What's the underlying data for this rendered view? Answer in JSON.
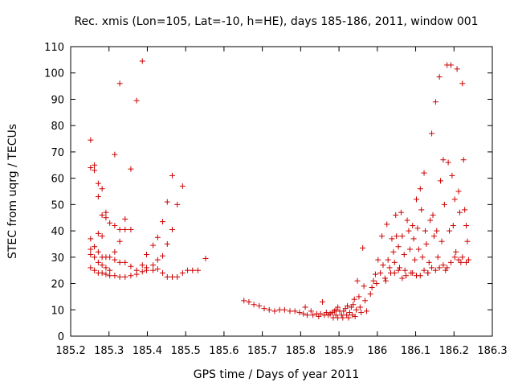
{
  "chart_data": {
    "type": "scatter",
    "title": "Rec. xmis (Lon=105, Lat=-10, h=HE), days 185-186, 2011, window 001",
    "xlabel": "GPS time / Days of year 2011",
    "ylabel": "STEC from uqrg / TECUs",
    "xlim": [
      185.2,
      186.3
    ],
    "ylim": [
      0,
      110
    ],
    "xticks": [
      "185.2",
      "185.3",
      "185.4",
      "185.5",
      "185.6",
      "185.7",
      "185.8",
      "185.9",
      "186",
      "186.1",
      "186.2",
      "186.3"
    ],
    "yticks": [
      "0",
      "10",
      "20",
      "30",
      "40",
      "50",
      "60",
      "70",
      "80",
      "90",
      "100",
      "110"
    ],
    "grid": false,
    "marker": "+",
    "color": "#cc0000",
    "points": [
      [
        185.252,
        74.5
      ],
      [
        185.252,
        64
      ],
      [
        185.252,
        37
      ],
      [
        185.252,
        33
      ],
      [
        185.252,
        31
      ],
      [
        185.252,
        26
      ],
      [
        185.262,
        65
      ],
      [
        185.262,
        63
      ],
      [
        185.262,
        34
      ],
      [
        185.262,
        30
      ],
      [
        185.262,
        25
      ],
      [
        185.272,
        58
      ],
      [
        185.272,
        53
      ],
      [
        185.272,
        39
      ],
      [
        185.272,
        32
      ],
      [
        185.272,
        28
      ],
      [
        185.272,
        24
      ],
      [
        185.282,
        56
      ],
      [
        185.282,
        46
      ],
      [
        185.282,
        38
      ],
      [
        185.282,
        30
      ],
      [
        185.282,
        27
      ],
      [
        185.282,
        24
      ],
      [
        185.292,
        47
      ],
      [
        185.292,
        45
      ],
      [
        185.292,
        30
      ],
      [
        185.292,
        26
      ],
      [
        185.292,
        23.5
      ],
      [
        185.302,
        43
      ],
      [
        185.302,
        30
      ],
      [
        185.302,
        25
      ],
      [
        185.302,
        23
      ],
      [
        185.315,
        69
      ],
      [
        185.315,
        42
      ],
      [
        185.315,
        32
      ],
      [
        185.315,
        29
      ],
      [
        185.315,
        23
      ],
      [
        185.328,
        96
      ],
      [
        185.328,
        40.5
      ],
      [
        185.328,
        36
      ],
      [
        185.328,
        28
      ],
      [
        185.328,
        22.5
      ],
      [
        185.342,
        44.5
      ],
      [
        185.342,
        40.5
      ],
      [
        185.342,
        28
      ],
      [
        185.342,
        22.5
      ],
      [
        185.357,
        63.5
      ],
      [
        185.357,
        40.5
      ],
      [
        185.357,
        26.5
      ],
      [
        185.357,
        23
      ],
      [
        185.372,
        89.5
      ],
      [
        185.372,
        25
      ],
      [
        185.372,
        23.5
      ],
      [
        185.387,
        104.5
      ],
      [
        185.387,
        27
      ],
      [
        185.387,
        24.5
      ],
      [
        185.398,
        31
      ],
      [
        185.398,
        26
      ],
      [
        185.398,
        25
      ],
      [
        185.415,
        34.5
      ],
      [
        185.415,
        27
      ],
      [
        185.415,
        25
      ],
      [
        185.427,
        37.5
      ],
      [
        185.427,
        29
      ],
      [
        185.427,
        25.5
      ],
      [
        185.44,
        43.5
      ],
      [
        185.44,
        30.5
      ],
      [
        185.44,
        24
      ],
      [
        185.452,
        51
      ],
      [
        185.452,
        35
      ],
      [
        185.452,
        22.5
      ],
      [
        185.465,
        61
      ],
      [
        185.465,
        40.5
      ],
      [
        185.465,
        22.5
      ],
      [
        185.478,
        50
      ],
      [
        185.478,
        22.5
      ],
      [
        185.492,
        57
      ],
      [
        185.492,
        24
      ],
      [
        185.505,
        25
      ],
      [
        185.518,
        25
      ],
      [
        185.532,
        25
      ],
      [
        185.552,
        29.5
      ],
      [
        185.652,
        13.5
      ],
      [
        185.665,
        13
      ],
      [
        185.678,
        12
      ],
      [
        185.692,
        11.5
      ],
      [
        185.705,
        10.5
      ],
      [
        185.718,
        10
      ],
      [
        185.732,
        9.5
      ],
      [
        185.745,
        10
      ],
      [
        185.758,
        10
      ],
      [
        185.772,
        9.5
      ],
      [
        185.785,
        9.5
      ],
      [
        185.797,
        9
      ],
      [
        185.807,
        8.5
      ],
      [
        185.812,
        11
      ],
      [
        185.817,
        8
      ],
      [
        185.827,
        9.5
      ],
      [
        185.832,
        8
      ],
      [
        185.842,
        8.5
      ],
      [
        185.847,
        7.5
      ],
      [
        185.852,
        8.5
      ],
      [
        185.857,
        13
      ],
      [
        185.862,
        8
      ],
      [
        185.867,
        9
      ],
      [
        185.872,
        8
      ],
      [
        185.877,
        8.5
      ],
      [
        185.882,
        9
      ],
      [
        185.885,
        7
      ],
      [
        185.888,
        9.5
      ],
      [
        185.892,
        10
      ],
      [
        185.892,
        8
      ],
      [
        185.897,
        11
      ],
      [
        185.897,
        7
      ],
      [
        185.902,
        9.5
      ],
      [
        185.907,
        8
      ],
      [
        185.91,
        7
      ],
      [
        185.912,
        9.5
      ],
      [
        185.917,
        10.5
      ],
      [
        185.92,
        8
      ],
      [
        185.922,
        11.5
      ],
      [
        185.925,
        7
      ],
      [
        185.928,
        9
      ],
      [
        185.932,
        11
      ],
      [
        185.935,
        8
      ],
      [
        185.937,
        12
      ],
      [
        185.94,
        14
      ],
      [
        185.942,
        7.5
      ],
      [
        185.945,
        10
      ],
      [
        185.948,
        21
      ],
      [
        185.952,
        15
      ],
      [
        185.955,
        11
      ],
      [
        185.958,
        9
      ],
      [
        185.962,
        33.5
      ],
      [
        185.965,
        19
      ],
      [
        185.968,
        13.5
      ],
      [
        185.972,
        9.5
      ],
      [
        185.982,
        16
      ],
      [
        185.986,
        18.5
      ],
      [
        185.99,
        21
      ],
      [
        185.995,
        23.5
      ],
      [
        185.998,
        20
      ],
      [
        186.002,
        29
      ],
      [
        186.008,
        24
      ],
      [
        186.012,
        38
      ],
      [
        186.015,
        27
      ],
      [
        186.02,
        22
      ],
      [
        186.025,
        42.5
      ],
      [
        186.028,
        29
      ],
      [
        186.032,
        26
      ],
      [
        186.035,
        24
      ],
      [
        186.038,
        37
      ],
      [
        186.042,
        32
      ],
      [
        186.045,
        28
      ],
      [
        186.048,
        46
      ],
      [
        186.05,
        38
      ],
      [
        186.055,
        34
      ],
      [
        186.058,
        26
      ],
      [
        186.062,
        47
      ],
      [
        186.065,
        38
      ],
      [
        186.07,
        31
      ],
      [
        186.072,
        25
      ],
      [
        186.078,
        44
      ],
      [
        186.082,
        40
      ],
      [
        186.085,
        33
      ],
      [
        186.088,
        24
      ],
      [
        186.092,
        42
      ],
      [
        186.095,
        37
      ],
      [
        186.098,
        29
      ],
      [
        186.102,
        52
      ],
      [
        186.105,
        41
      ],
      [
        186.108,
        33
      ],
      [
        186.112,
        56
      ],
      [
        186.115,
        48
      ],
      [
        186.118,
        30
      ],
      [
        186.122,
        62
      ],
      [
        186.125,
        40
      ],
      [
        186.128,
        35
      ],
      [
        186.132,
        24
      ],
      [
        186.135,
        28
      ],
      [
        186.138,
        44
      ],
      [
        186.142,
        77
      ],
      [
        186.145,
        46
      ],
      [
        186.148,
        38
      ],
      [
        186.152,
        89
      ],
      [
        186.155,
        40
      ],
      [
        186.158,
        30
      ],
      [
        186.162,
        98.5
      ],
      [
        186.165,
        59
      ],
      [
        186.168,
        36
      ],
      [
        186.172,
        67
      ],
      [
        186.175,
        50
      ],
      [
        186.178,
        25
      ],
      [
        186.182,
        103
      ],
      [
        186.185,
        66
      ],
      [
        186.188,
        40
      ],
      [
        186.192,
        103
      ],
      [
        186.195,
        61
      ],
      [
        186.198,
        42
      ],
      [
        186.202,
        52
      ],
      [
        186.205,
        32
      ],
      [
        186.208,
        101.5
      ],
      [
        186.212,
        55
      ],
      [
        186.215,
        47
      ],
      [
        186.218,
        28
      ],
      [
        186.222,
        96
      ],
      [
        186.225,
        67
      ],
      [
        186.228,
        48
      ],
      [
        186.232,
        42
      ],
      [
        186.235,
        36
      ],
      [
        186.238,
        29
      ],
      [
        186.162,
        26
      ],
      [
        186.172,
        27
      ],
      [
        186.182,
        26
      ],
      [
        186.192,
        28
      ],
      [
        186.202,
        30
      ],
      [
        186.212,
        29
      ],
      [
        186.222,
        30
      ],
      [
        186.232,
        28
      ],
      [
        186.092,
        24
      ],
      [
        186.102,
        23
      ],
      [
        186.112,
        23
      ],
      [
        186.122,
        25
      ],
      [
        186.132,
        24
      ],
      [
        186.142,
        26
      ],
      [
        186.152,
        25
      ],
      [
        186.065,
        22
      ],
      [
        186.075,
        23
      ],
      [
        186.045,
        24
      ],
      [
        186.055,
        25
      ],
      [
        186.022,
        21
      ]
    ]
  }
}
